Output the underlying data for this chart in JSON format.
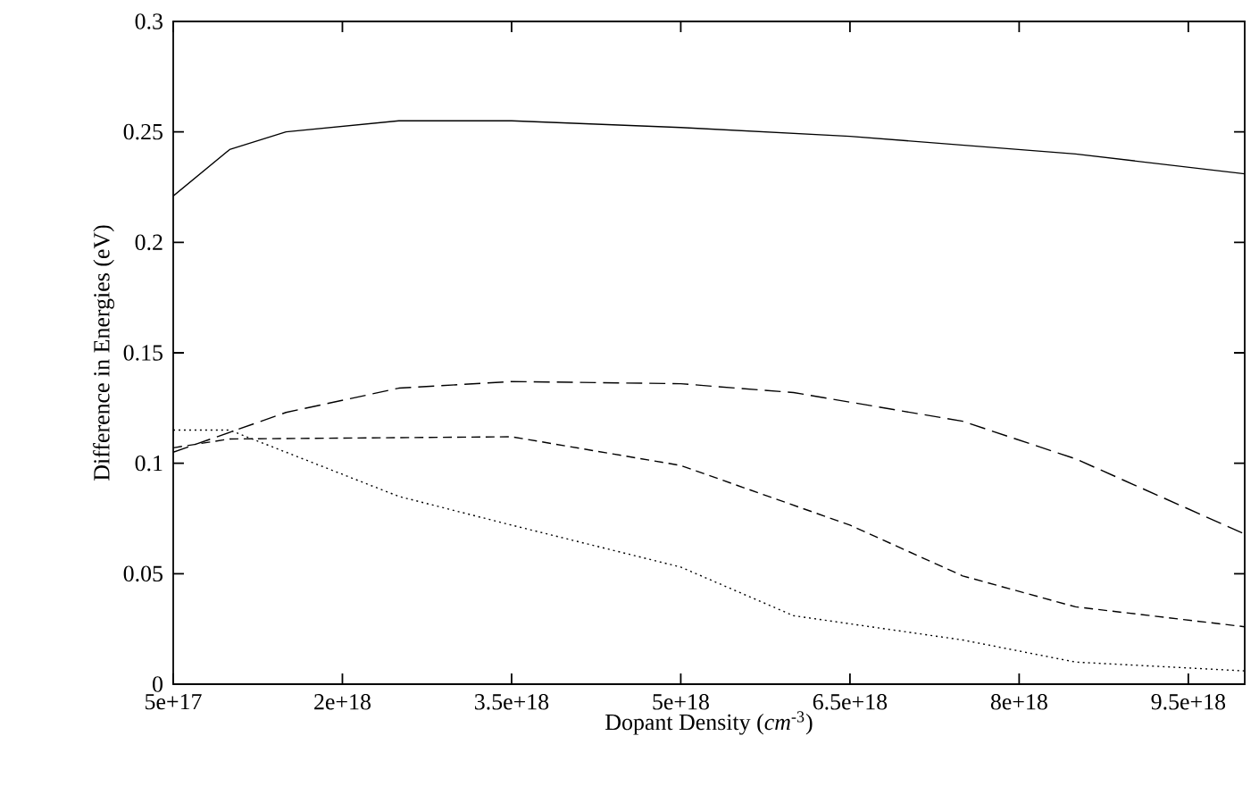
{
  "chart_data": {
    "type": "line",
    "xlabel": "Dopant Density (*cm*$^{-3}$)",
    "ylabel": "Difference in Energies (eV)",
    "xlim": [
      5e+17,
      1e+19
    ],
    "ylim": [
      0,
      0.3
    ],
    "xticks": [
      {
        "value": 5e+17,
        "label": "5e+17"
      },
      {
        "value": 2e+18,
        "label": "2e+18"
      },
      {
        "value": 3.5e+18,
        "label": "3.5e+18"
      },
      {
        "value": 5e+18,
        "label": "5e+18"
      },
      {
        "value": 6.5e+18,
        "label": "6.5e+18"
      },
      {
        "value": 8e+18,
        "label": "8e+18"
      },
      {
        "value": 9.5e+18,
        "label": "9.5e+18"
      }
    ],
    "yticks": [
      0,
      0.05,
      0.1,
      0.15,
      0.2,
      0.25,
      0.3
    ],
    "marker": "none",
    "series": [
      {
        "color": "#000000",
        "line_style": "solid",
        "x": [
          5e+17,
          1e+18,
          1.5e+18,
          2.5e+18,
          3.5e+18,
          5e+18,
          6.5e+18,
          8.5e+18,
          1e+19
        ],
        "values": [
          0.221,
          0.242,
          0.25,
          0.255,
          0.255,
          0.252,
          0.248,
          0.24,
          0.231
        ]
      },
      {
        "color": "#000000",
        "line_style": "dashed",
        "x": [
          5e+17,
          1.5e+18,
          2.5e+18,
          3.5e+18,
          5e+18,
          6e+18,
          7.5e+18,
          8.5e+18,
          1e+19
        ],
        "values": [
          0.105,
          0.123,
          0.134,
          0.137,
          0.136,
          0.132,
          0.119,
          0.102,
          0.068
        ]
      },
      {
        "color": "#000000",
        "line_style": "densely dashed",
        "x": [
          5e+17,
          1e+18,
          3.5e+18,
          5e+18,
          6.5e+18,
          7.5e+18,
          8.5e+18,
          1e+19
        ],
        "values": [
          0.107,
          0.111,
          0.112,
          0.099,
          0.072,
          0.049,
          0.035,
          0.026
        ]
      },
      {
        "color": "#000000",
        "line_style": "dotted",
        "x": [
          5e+17,
          1e+18,
          2.5e+18,
          3.5e+18,
          5e+18,
          6e+18,
          7.5e+18,
          8.5e+18,
          1e+19
        ],
        "values": [
          0.115,
          0.115,
          0.085,
          0.072,
          0.053,
          0.031,
          0.02,
          0.01,
          0.006
        ]
      }
    ]
  }
}
